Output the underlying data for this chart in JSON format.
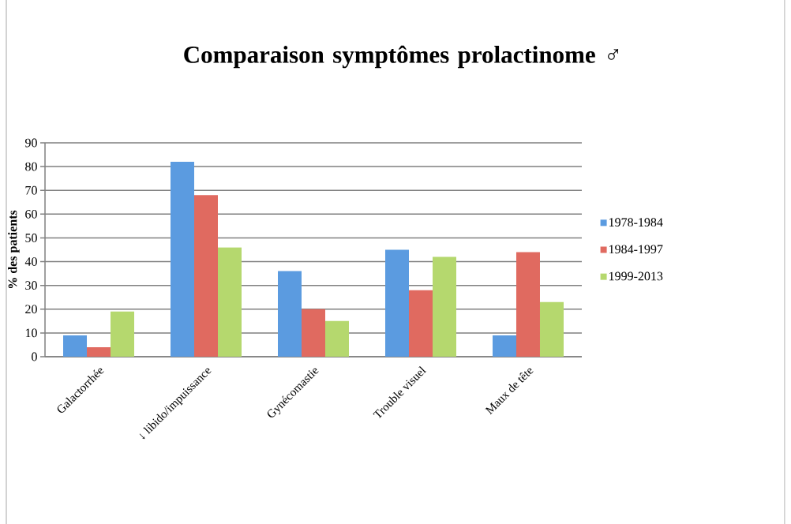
{
  "chart_data": {
    "type": "bar",
    "title": "Comparaison symptômes prolactinome ♂",
    "ylabel": "% des patients",
    "categories": [
      "Galactorrhée",
      "↓ libido/impuissance",
      "Gynécomastie",
      "Trouble visuel",
      "Maux de tête"
    ],
    "series": [
      {
        "name": "1978-1984",
        "color": "#5b9be0",
        "values": [
          9,
          82,
          36,
          45,
          9
        ]
      },
      {
        "name": "1984-1997",
        "color": "#e06a60",
        "values": [
          4,
          68,
          20,
          28,
          44
        ]
      },
      {
        "name": "1999-2013",
        "color": "#b5d86e",
        "values": [
          19,
          46,
          15,
          42,
          23
        ]
      }
    ],
    "ylim": [
      0,
      90
    ],
    "yticks": [
      0,
      10,
      20,
      30,
      40,
      50,
      60,
      70,
      80,
      90
    ],
    "grid": "y",
    "legend": "right"
  }
}
